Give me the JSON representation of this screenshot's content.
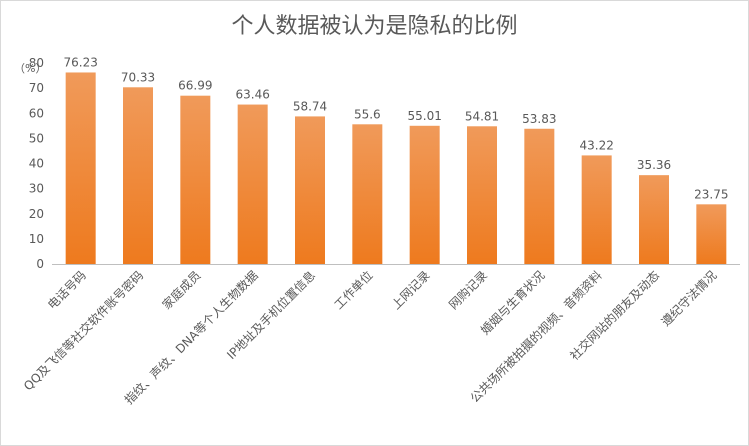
{
  "chart_data": {
    "type": "bar",
    "title": "个人数据被认为是隐私的比例",
    "ylabel": "（%）",
    "ylim": [
      0,
      80
    ],
    "yticks": [
      0,
      10,
      20,
      30,
      40,
      50,
      60,
      70,
      80
    ],
    "grid": false,
    "legend": "none",
    "bar_color_top": "#f09a5a",
    "bar_color_bottom": "#ee7a1e",
    "categories": [
      "电话号码",
      "QQ及飞信等社交软件账号密码",
      "家庭成员",
      "指纹、声纹、DNA等个人生物数据",
      "IP地址及手机位置信息",
      "工作单位",
      "上网记录",
      "网购记录",
      "婚姻与生育状况",
      "公共场所被拍摄的视频、音频资料",
      "社交网站的朋友及动态",
      "遵纪守法情况"
    ],
    "values": [
      76.23,
      70.33,
      66.99,
      63.46,
      58.74,
      55.6,
      55.01,
      54.81,
      53.83,
      43.22,
      35.36,
      23.75
    ],
    "value_labels": [
      "76.23",
      "70.33",
      "66.99",
      "63.46",
      "58.74",
      "55.6",
      "55.01",
      "54.81",
      "53.83",
      "43.22",
      "35.36",
      "23.75"
    ]
  }
}
